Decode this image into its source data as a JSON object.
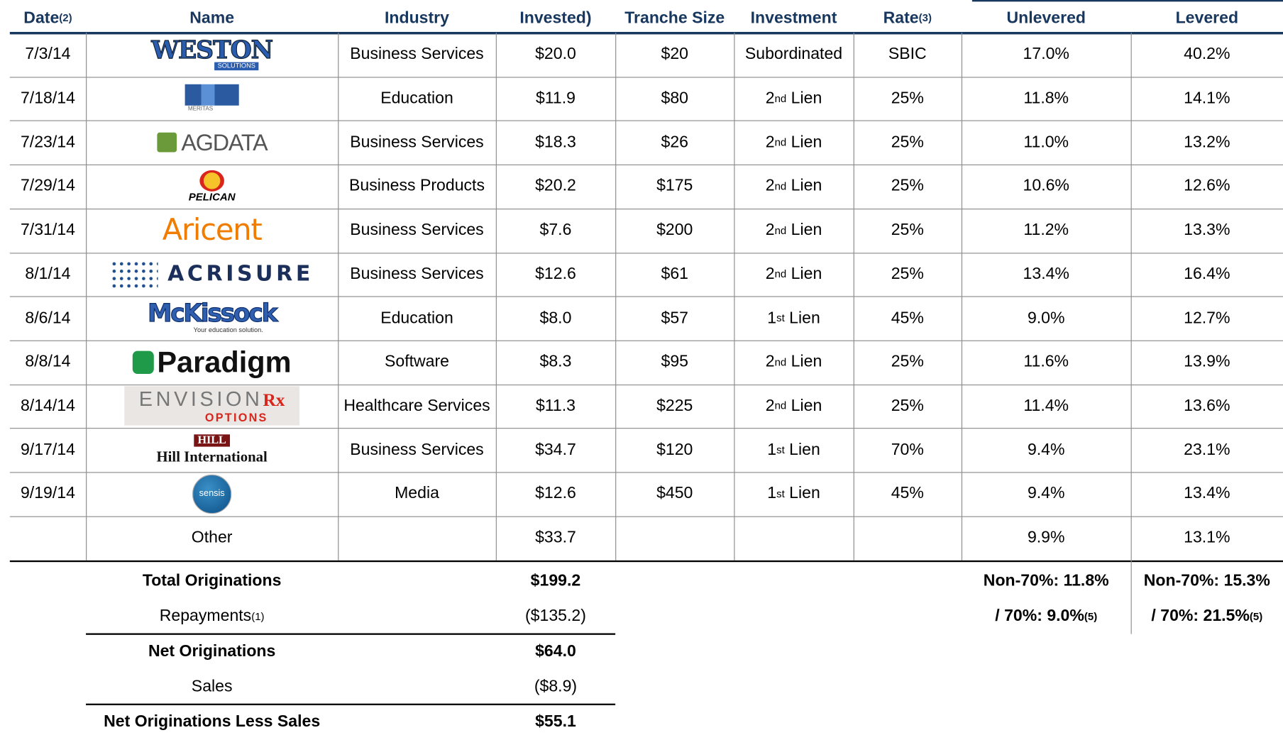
{
  "header": {
    "columns": [
      {
        "text": "Date",
        "sup": "(2)"
      },
      {
        "text": "Name"
      },
      {
        "text": "Industry"
      },
      {
        "text": "Invested)"
      },
      {
        "text": "Tranche Size"
      },
      {
        "text": "Investment"
      },
      {
        "text": "Rate",
        "sup": "(3)"
      },
      {
        "text": "Unlevered"
      },
      {
        "text": "Levered"
      }
    ]
  },
  "table": {
    "rows": [
      {
        "date": "7/3/14",
        "logo": [
          "WESTON",
          "SOLUTIONS"
        ],
        "industry": "Business Services",
        "invested": "$20.0",
        "tranche": "$20",
        "type": {
          "text": "Subordinated"
        },
        "advance": "SBIC",
        "unlevered": "17.0%",
        "levered": "40.2%"
      },
      {
        "date": "7/18/14",
        "logo": [
          "MERITAS"
        ],
        "industry": "Education",
        "invested": "$11.9",
        "tranche": "$80",
        "type": {
          "num": "2",
          "sup": "nd",
          "text": "Lien"
        },
        "advance": "25%",
        "unlevered": "11.8%",
        "levered": "14.1%"
      },
      {
        "date": "7/23/14",
        "logo": [
          "AGDATA"
        ],
        "industry": "Business Services",
        "invested": "$18.3",
        "tranche": "$26",
        "type": {
          "num": "2",
          "sup": "nd",
          "text": "Lien"
        },
        "advance": "25%",
        "unlevered": "11.0%",
        "levered": "13.2%"
      },
      {
        "date": "7/29/14",
        "logo": [
          "PELICAN"
        ],
        "industry": "Business Products",
        "invested": "$20.2",
        "tranche": "$175",
        "type": {
          "num": "2",
          "sup": "nd",
          "text": "Lien"
        },
        "advance": "25%",
        "unlevered": "10.6%",
        "levered": "12.6%"
      },
      {
        "date": "7/31/14",
        "logo": [
          "Aricent"
        ],
        "industry": "Business Services",
        "invested": "$7.6",
        "tranche": "$200",
        "type": {
          "num": "2",
          "sup": "nd",
          "text": "Lien"
        },
        "advance": "25%",
        "unlevered": "11.2%",
        "levered": "13.3%"
      },
      {
        "date": "8/1/14",
        "logo": [
          "ACRISURE"
        ],
        "industry": "Business Services",
        "invested": "$12.6",
        "tranche": "$61",
        "type": {
          "num": "2",
          "sup": "nd",
          "text": "Lien"
        },
        "advance": "25%",
        "unlevered": "13.4%",
        "levered": "16.4%"
      },
      {
        "date": "8/6/14",
        "logo": [
          "McKissock",
          "Your education solution."
        ],
        "industry": "Education",
        "invested": "$8.0",
        "tranche": "$57",
        "type": {
          "num": "1",
          "sup": "st",
          "text": "Lien"
        },
        "advance": "45%",
        "unlevered": "9.0%",
        "levered": "12.7%"
      },
      {
        "date": "8/8/14",
        "logo": [
          "Paradigm"
        ],
        "industry": "Software",
        "invested": "$8.3",
        "tranche": "$95",
        "type": {
          "num": "2",
          "sup": "nd",
          "text": "Lien"
        },
        "advance": "25%",
        "unlevered": "11.6%",
        "levered": "13.9%"
      },
      {
        "date": "8/14/14",
        "logo": [
          "ENVISION",
          "Rx",
          "OPTIONS"
        ],
        "industry": "Healthcare Services",
        "invested": "$11.3",
        "tranche": "$225",
        "type": {
          "num": "2",
          "sup": "nd",
          "text": "Lien"
        },
        "advance": "25%",
        "unlevered": "11.4%",
        "levered": "13.6%"
      },
      {
        "date": "9/17/14",
        "logo": [
          "HILL",
          "Hill International"
        ],
        "industry": "Business Services",
        "invested": "$34.7",
        "tranche": "$120",
        "type": {
          "num": "1",
          "sup": "st",
          "text": "Lien"
        },
        "advance": "70%",
        "unlevered": "9.4%",
        "levered": "23.1%"
      },
      {
        "date": "9/19/14",
        "logo": [
          "sensis"
        ],
        "industry": "Media",
        "invested": "$12.6",
        "tranche": "$450",
        "type": {
          "num": "1",
          "sup": "st",
          "text": "Lien"
        },
        "advance": "45%",
        "unlevered": "9.4%",
        "levered": "13.4%"
      },
      {
        "name": "Other",
        "invested": "$33.7",
        "unlevered": "9.9%",
        "levered": "13.1%"
      }
    ]
  },
  "summary": {
    "total": {
      "label": "Total Originations",
      "value": "$199.2",
      "unlevered": "Non-70%: 11.8%",
      "levered": "Non-70%: 15.3%"
    },
    "repayments": {
      "label": {
        "text": "Repayments",
        "sup": "(1)"
      },
      "value": "($135.2)",
      "unlevered": {
        "text": "/ 70%: 9.0%",
        "sup": "(5)"
      },
      "levered": {
        "text": "/ 70%: 21.5%",
        "sup": "(5)"
      }
    },
    "net": {
      "label": "Net Originations",
      "value": "$64.0"
    },
    "sales": {
      "label": "Sales",
      "value": "($8.9)"
    },
    "net_less_sales": {
      "label": "Net Originations Less Sales",
      "value": "$55.1"
    }
  }
}
